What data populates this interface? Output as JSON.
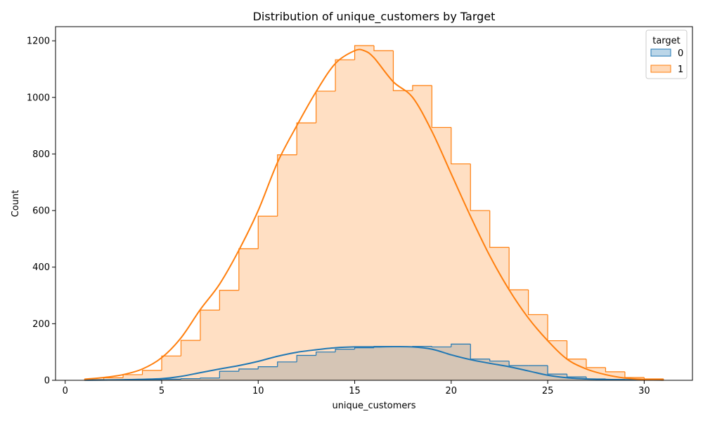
{
  "chart_data": {
    "type": "area",
    "title": "Distribution of unique_customers by Target",
    "xlabel": "unique_customers",
    "ylabel": "Count",
    "xlim": [
      -0.5,
      32.5
    ],
    "ylim": [
      0,
      1250
    ],
    "xticks": [
      0,
      5,
      10,
      15,
      20,
      25,
      30
    ],
    "yticks": [
      0,
      200,
      400,
      600,
      800,
      1000,
      1200
    ],
    "legend": {
      "title": "target",
      "placement": "top-right"
    },
    "bin_edges": [
      1,
      2,
      3,
      4,
      5,
      6,
      7,
      8,
      9,
      10,
      11,
      12,
      13,
      14,
      15,
      16,
      17,
      18,
      19,
      20,
      21,
      22,
      23,
      24,
      25,
      26,
      27,
      28,
      29,
      30,
      31
    ],
    "series": [
      {
        "name": "0",
        "color": "#1f77b4",
        "fill": "#1f77b4",
        "counts": [
          1,
          1,
          2,
          3,
          4,
          6,
          8,
          32,
          40,
          48,
          65,
          88,
          100,
          110,
          115,
          120,
          118,
          120,
          118,
          128,
          75,
          68,
          52,
          52,
          22,
          12,
          5,
          3,
          2,
          1
        ],
        "kde": [
          [
            1,
            0.5
          ],
          [
            3,
            2
          ],
          [
            5,
            6
          ],
          [
            6,
            14
          ],
          [
            7,
            27
          ],
          [
            8,
            40
          ],
          [
            9,
            52
          ],
          [
            10,
            67
          ],
          [
            11,
            85
          ],
          [
            12,
            99
          ],
          [
            13,
            108
          ],
          [
            14,
            115
          ],
          [
            15,
            118
          ],
          [
            16,
            118
          ],
          [
            17,
            119
          ],
          [
            18,
            118
          ],
          [
            19,
            110
          ],
          [
            20,
            90
          ],
          [
            21,
            73
          ],
          [
            22,
            60
          ],
          [
            23,
            48
          ],
          [
            24,
            33
          ],
          [
            25,
            18
          ],
          [
            26,
            9
          ],
          [
            27,
            5
          ],
          [
            28,
            3
          ],
          [
            29,
            2
          ],
          [
            31,
            1
          ]
        ]
      },
      {
        "name": "1",
        "color": "#ff7f0e",
        "fill": "#ff7f0e",
        "counts": [
          3,
          9,
          20,
          35,
          86,
          141,
          248,
          318,
          465,
          580,
          797,
          910,
          1022,
          1133,
          1183,
          1165,
          1024,
          1042,
          894,
          765,
          600,
          470,
          320,
          232,
          140,
          75,
          45,
          30,
          10,
          5
        ],
        "kde": [
          [
            1,
            4
          ],
          [
            2,
            10
          ],
          [
            3,
            20
          ],
          [
            4,
            40
          ],
          [
            5,
            80
          ],
          [
            6,
            150
          ],
          [
            7,
            250
          ],
          [
            8,
            340
          ],
          [
            9,
            460
          ],
          [
            10,
            600
          ],
          [
            11,
            770
          ],
          [
            12,
            900
          ],
          [
            13,
            1020
          ],
          [
            14,
            1120
          ],
          [
            15,
            1165
          ],
          [
            15.5,
            1165
          ],
          [
            16,
            1140
          ],
          [
            17,
            1055
          ],
          [
            18,
            1000
          ],
          [
            19,
            880
          ],
          [
            20,
            730
          ],
          [
            21,
            580
          ],
          [
            22,
            440
          ],
          [
            23,
            320
          ],
          [
            24,
            220
          ],
          [
            25,
            140
          ],
          [
            26,
            75
          ],
          [
            27,
            40
          ],
          [
            28,
            20
          ],
          [
            29,
            8
          ],
          [
            30,
            3
          ],
          [
            31,
            1
          ]
        ]
      }
    ]
  }
}
